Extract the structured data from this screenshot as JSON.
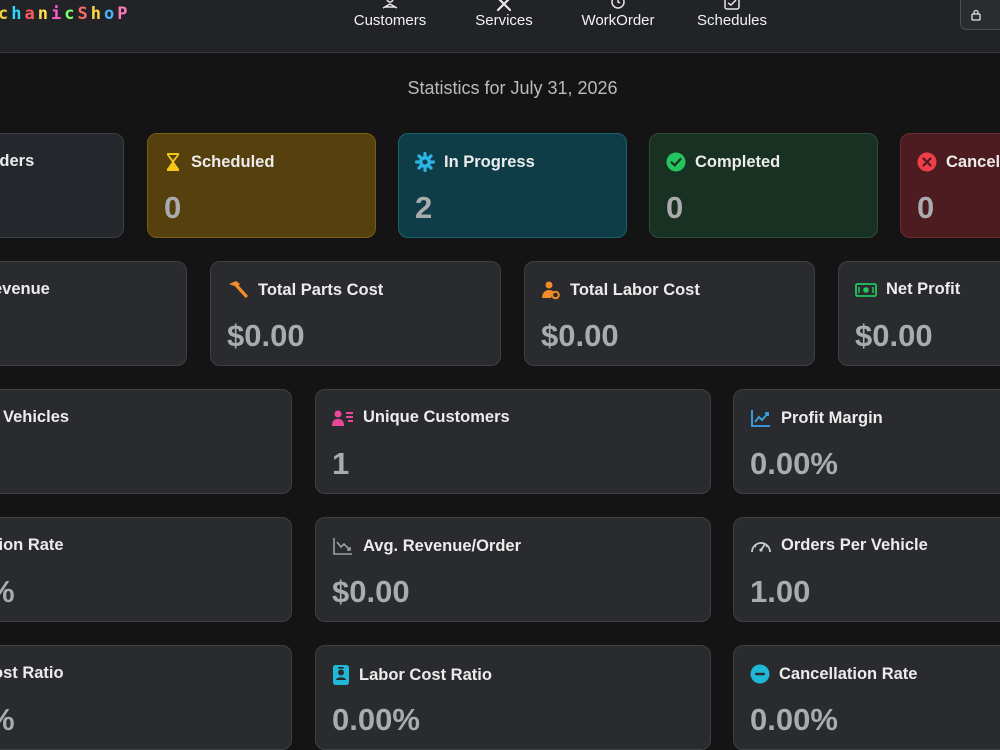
{
  "navbar": {
    "brand": [
      "c",
      "h",
      "a",
      "n",
      "i",
      "c",
      "S",
      "h",
      "o",
      "P"
    ],
    "brand_colors": [
      "#f2d33a",
      "#2bd9ff",
      "#ff5a5a",
      "#ffe14a",
      "#ff5ad2",
      "#7cff6b",
      "#ff6a6a",
      "#ffd84a",
      "#4ab3ff",
      "#ff7ab8"
    ],
    "items": [
      {
        "label": "Customers",
        "icon": "customers-icon"
      },
      {
        "label": "Services",
        "icon": "tools-icon"
      },
      {
        "label": "WorkOrder",
        "icon": "clock-icon"
      },
      {
        "label": "Schedules",
        "icon": "calendar-icon"
      }
    ],
    "lock_icon": "lock-icon"
  },
  "stats_title": "Statistics for July 31, 2026",
  "status_cards": [
    {
      "label": "rders",
      "value": "",
      "icon": "none"
    },
    {
      "label": "Scheduled",
      "value": "0",
      "icon": "hourglass-icon",
      "color": "#f5c518"
    },
    {
      "label": "In Progress",
      "value": "2",
      "icon": "gear-icon",
      "color": "#2bb4e6"
    },
    {
      "label": "Completed",
      "value": "0",
      "icon": "check-circle-icon",
      "color": "#22c55e"
    },
    {
      "label": "Cancell",
      "value": "0",
      "icon": "x-circle-icon",
      "color": "#ef3e4a"
    }
  ],
  "cost_cards": [
    {
      "label": "evenue",
      "value": ""
    },
    {
      "label": "Total Parts Cost",
      "value": "$0.00",
      "icon": "hammer-icon",
      "color": "#f28c28"
    },
    {
      "label": "Total Labor Cost",
      "value": "$0.00",
      "icon": "worker-icon",
      "color": "#f28c28"
    },
    {
      "label": "Net Profit",
      "value": "$0.00",
      "icon": "cash-icon",
      "color": "#22c55e"
    }
  ],
  "row3_cards": [
    {
      "label": "Vehicles",
      "value": ""
    },
    {
      "label": "Unique Customers",
      "value": "1",
      "icon": "person-lines-icon",
      "color": "#ec4899"
    },
    {
      "label": "Profit Margin",
      "value": "0.00%",
      "icon": "trend-up-icon",
      "color": "#3ba4e8"
    }
  ],
  "row4_cards": [
    {
      "label": "tion Rate",
      "value": "%"
    },
    {
      "label": "Avg. Revenue/Order",
      "value": "$0.00",
      "icon": "trend-down-icon",
      "color": "#9aa0a6"
    },
    {
      "label": "Orders Per Vehicle",
      "value": "1.00",
      "icon": "speedometer-icon",
      "color": "#c7c9cc"
    }
  ],
  "row5_cards": [
    {
      "label": "ost Ratio",
      "value": "%"
    },
    {
      "label": "Labor Cost Ratio",
      "value": "0.00%",
      "icon": "badge-icon",
      "color": "#1fb8d6"
    },
    {
      "label": "Cancellation Rate",
      "value": "0.00%",
      "icon": "dash-circle-icon",
      "color": "#1fb8d6"
    }
  ]
}
